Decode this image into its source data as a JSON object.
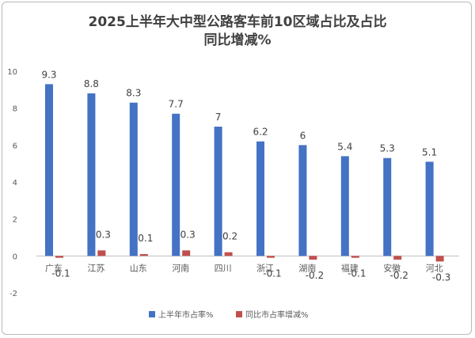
{
  "chart_data": {
    "type": "bar",
    "title_line1": "2025上半年大中型公路客车前10区域占比及占比",
    "title_line2": "同比增减%",
    "categories": [
      "广东",
      "江苏",
      "山东",
      "河南",
      "四川",
      "浙江",
      "湖南",
      "福建",
      "安徽",
      "河北"
    ],
    "series": [
      {
        "name": "上半年市占率%",
        "values": [
          9.3,
          8.8,
          8.3,
          7.7,
          7,
          6.2,
          6,
          5.4,
          5.3,
          5.1
        ],
        "color": "#4472c4"
      },
      {
        "name": "同比市占率增减%",
        "values": [
          -0.1,
          0.3,
          0.1,
          0.3,
          0.2,
          -0.1,
          -0.2,
          -0.1,
          -0.2,
          -0.3
        ],
        "color": "#c0504d"
      }
    ],
    "ylim": [
      -2,
      10
    ],
    "yticks": [
      "-2",
      "0",
      "2",
      "4",
      "6",
      "8",
      "10"
    ],
    "grid": false,
    "legend_position": "bottom",
    "xlabel": "",
    "ylabel": ""
  }
}
